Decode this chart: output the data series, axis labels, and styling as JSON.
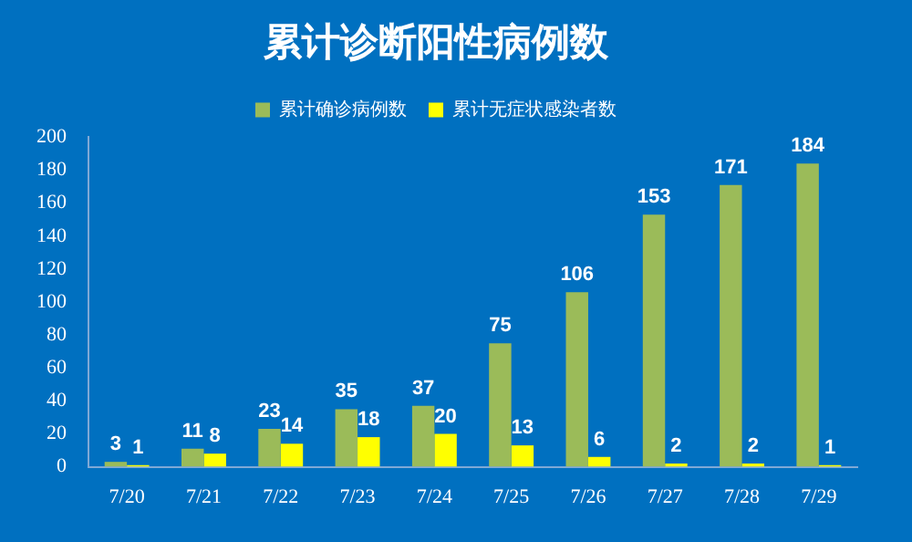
{
  "chart_data": {
    "type": "bar",
    "title": "累计诊断阳性病例数",
    "categories": [
      "7/20",
      "7/21",
      "7/22",
      "7/23",
      "7/24",
      "7/25",
      "7/26",
      "7/27",
      "7/28",
      "7/29"
    ],
    "series": [
      {
        "name": "累计确诊病例数",
        "color": "#9bbb59",
        "values": [
          3,
          11,
          23,
          35,
          37,
          75,
          106,
          153,
          171,
          184
        ]
      },
      {
        "name": "累计无症状感染者数",
        "color": "#ffff00",
        "values": [
          1,
          8,
          14,
          18,
          20,
          13,
          6,
          2,
          2,
          1
        ]
      }
    ],
    "ylim": [
      0,
      200
    ],
    "yticks": [
      0,
      20,
      40,
      60,
      80,
      100,
      120,
      140,
      160,
      180,
      200
    ],
    "grid": false,
    "legend": "top",
    "data_labels": true
  }
}
